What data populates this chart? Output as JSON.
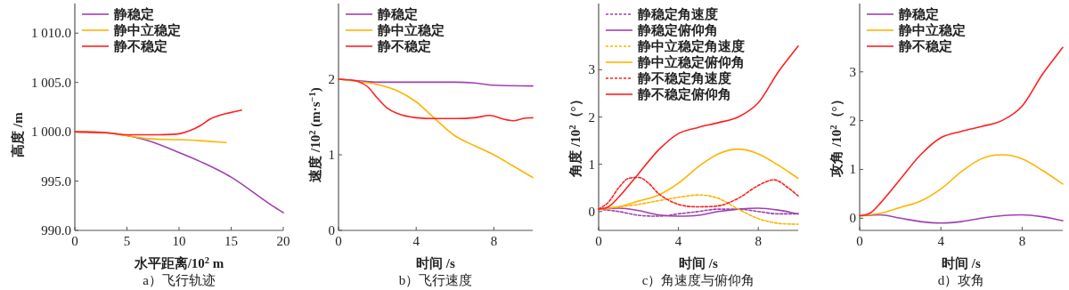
{
  "chart_data": [
    {
      "type": "line",
      "title": "a）飞行轨迹",
      "xlabel": "水平距离/10$^{2}$ m",
      "ylabel": "高度 /m",
      "xlim": [
        0,
        20
      ],
      "ylim": [
        990,
        1013
      ],
      "xticks": [
        0,
        5,
        10,
        15,
        20
      ],
      "yticks": [
        {
          "value": 990,
          "label": "990.0"
        },
        {
          "value": 995,
          "label": "995.0"
        },
        {
          "value": 1000,
          "label": "1 000.0"
        },
        {
          "value": 1005,
          "label": "1 005.0"
        },
        {
          "value": 1010,
          "label": "1 010.0"
        }
      ],
      "legend": "top left",
      "series": [
        {
          "name": "静稳定",
          "color": "#a040b0",
          "x": [
            0,
            3,
            5,
            7,
            10,
            12,
            15,
            18.8,
            20
          ],
          "values": [
            1000,
            999.9,
            999.6,
            999.1,
            997.9,
            997.0,
            995.4,
            992.6,
            991.8
          ]
        },
        {
          "name": "静中立稳定",
          "color": "#ffb300",
          "x": [
            0,
            3,
            5,
            7,
            10,
            12,
            14.5
          ],
          "values": [
            1000,
            999.9,
            999.6,
            999.3,
            999.2,
            999.1,
            998.9
          ]
        },
        {
          "name": "静不稳定",
          "color": "#ff2020",
          "x": [
            0,
            3,
            5,
            8,
            10,
            11,
            12,
            13,
            14,
            16
          ],
          "values": [
            1000,
            999.9,
            999.7,
            999.7,
            999.8,
            1000.1,
            1000.6,
            1001.3,
            1001.7,
            1002.2
          ]
        }
      ]
    },
    {
      "type": "line",
      "title": "b）飞行速度",
      "xlabel": "时间 /s",
      "ylabel": "速度 /10$^{2}$ (m·s$^{−1}$)",
      "xlim": [
        0,
        10
      ],
      "ylim": [
        0,
        3
      ],
      "xticks": [
        0,
        4,
        8
      ],
      "yticks": [
        0,
        1,
        2
      ],
      "legend": "top left",
      "series": [
        {
          "name": "静稳定",
          "color": "#a040b0",
          "x": [
            0,
            1,
            2,
            4,
            6,
            7,
            8,
            10
          ],
          "values": [
            2.0,
            1.98,
            1.96,
            1.96,
            1.96,
            1.95,
            1.92,
            1.91
          ]
        },
        {
          "name": "静中立稳定",
          "color": "#ffb300",
          "x": [
            0,
            1,
            2,
            3,
            4,
            5,
            6,
            7,
            8,
            9,
            10
          ],
          "values": [
            2.0,
            1.97,
            1.93,
            1.85,
            1.7,
            1.47,
            1.25,
            1.12,
            1.0,
            0.85,
            0.7
          ]
        },
        {
          "name": "静不稳定",
          "color": "#ff2020",
          "x": [
            0,
            1,
            1.5,
            2,
            2.5,
            3,
            4,
            5,
            6,
            7,
            7.8,
            8.5,
            9,
            9.5,
            10
          ],
          "values": [
            2.0,
            1.97,
            1.9,
            1.75,
            1.62,
            1.55,
            1.49,
            1.48,
            1.48,
            1.49,
            1.52,
            1.47,
            1.45,
            1.48,
            1.49
          ]
        }
      ]
    },
    {
      "type": "line",
      "title": "c）角速度与俯仰角",
      "xlabel": "时间 /s",
      "ylabel": "角度 /10$^{2}$（°）",
      "xlim": [
        0,
        10
      ],
      "ylim": [
        -0.4,
        4.4
      ],
      "xticks": [
        0,
        4,
        8
      ],
      "yticks": [
        0,
        1,
        2,
        3
      ],
      "legend": "top left",
      "series": [
        {
          "name": "静稳定角速度",
          "color": "#a040b0",
          "line_style": "dotted",
          "x": [
            0,
            1,
            2,
            3,
            4,
            5,
            6,
            7,
            8,
            9,
            10
          ],
          "values": [
            0.05,
            0,
            -0.08,
            -0.1,
            -0.05,
            0,
            0.05,
            0.05,
            0,
            -0.05,
            -0.05
          ]
        },
        {
          "name": "静稳定俯仰角",
          "color": "#a040b0",
          "line_style": "solid",
          "x": [
            0,
            1,
            2,
            3,
            4,
            5,
            6,
            7,
            8,
            9,
            10
          ],
          "values": [
            0.05,
            0.07,
            0.02,
            -0.07,
            -0.1,
            -0.08,
            0,
            0.05,
            0.07,
            0.03,
            -0.05
          ]
        },
        {
          "name": "静中立稳定角速度",
          "color": "#ffb300",
          "line_style": "dotted",
          "x": [
            0,
            1,
            2,
            3,
            4,
            5,
            6,
            7,
            8,
            9,
            10
          ],
          "values": [
            0.05,
            0.1,
            0.15,
            0.23,
            0.3,
            0.35,
            0.28,
            0.05,
            -0.15,
            -0.25,
            -0.27
          ]
        },
        {
          "name": "静中立稳定俯仰角",
          "color": "#ffb300",
          "line_style": "solid",
          "x": [
            0,
            1,
            2,
            3,
            4,
            5,
            6,
            7,
            8,
            9,
            10
          ],
          "values": [
            0.05,
            0.1,
            0.22,
            0.35,
            0.6,
            0.95,
            1.22,
            1.32,
            1.22,
            0.98,
            0.7
          ]
        },
        {
          "name": "静不稳定角速度",
          "color": "#ff2020",
          "line_style": "dotted",
          "x": [
            0,
            0.5,
            1,
            1.5,
            2,
            2.5,
            3,
            4,
            5,
            6,
            7,
            8,
            8.8,
            9.5,
            10
          ],
          "values": [
            0.05,
            0.2,
            0.5,
            0.7,
            0.72,
            0.6,
            0.38,
            0.15,
            0.1,
            0.12,
            0.28,
            0.55,
            0.67,
            0.5,
            0.33
          ]
        },
        {
          "name": "静不稳定俯仰角",
          "color": "#ff2020",
          "line_style": "solid",
          "x": [
            0,
            0.5,
            1,
            2,
            3,
            4,
            5,
            6,
            7,
            8,
            9,
            10
          ],
          "values": [
            0.05,
            0.1,
            0.3,
            0.8,
            1.3,
            1.65,
            1.78,
            1.88,
            2.0,
            2.3,
            2.95,
            3.5
          ]
        }
      ]
    },
    {
      "type": "line",
      "title": "d）攻角",
      "xlabel": "时间 /s",
      "ylabel": "攻角 /10$^{2}$（°）",
      "xlim": [
        0,
        10
      ],
      "ylim": [
        -0.25,
        4.4
      ],
      "xticks": [
        0,
        4,
        8
      ],
      "yticks": [
        0,
        1,
        2,
        3
      ],
      "legend": "top left",
      "series": [
        {
          "name": "静稳定",
          "color": "#a040b0",
          "x": [
            0,
            1,
            2,
            3,
            4,
            5,
            6,
            7,
            8,
            9,
            10
          ],
          "values": [
            0.05,
            0.07,
            0,
            -0.07,
            -0.1,
            -0.07,
            0,
            0.05,
            0.07,
            0.03,
            -0.05
          ]
        },
        {
          "name": "静中立稳定",
          "color": "#ffb300",
          "x": [
            0,
            1,
            2,
            3,
            4,
            5,
            6,
            7,
            8,
            9,
            10
          ],
          "values": [
            0.05,
            0.1,
            0.22,
            0.35,
            0.6,
            0.95,
            1.22,
            1.3,
            1.22,
            0.98,
            0.7
          ]
        },
        {
          "name": "静不稳定",
          "color": "#ff2020",
          "x": [
            0,
            0.5,
            1,
            2,
            3,
            4,
            5,
            6,
            7,
            8,
            9,
            10
          ],
          "values": [
            0.05,
            0.1,
            0.3,
            0.8,
            1.3,
            1.65,
            1.78,
            1.88,
            2.0,
            2.3,
            2.95,
            3.5
          ]
        }
      ]
    }
  ]
}
